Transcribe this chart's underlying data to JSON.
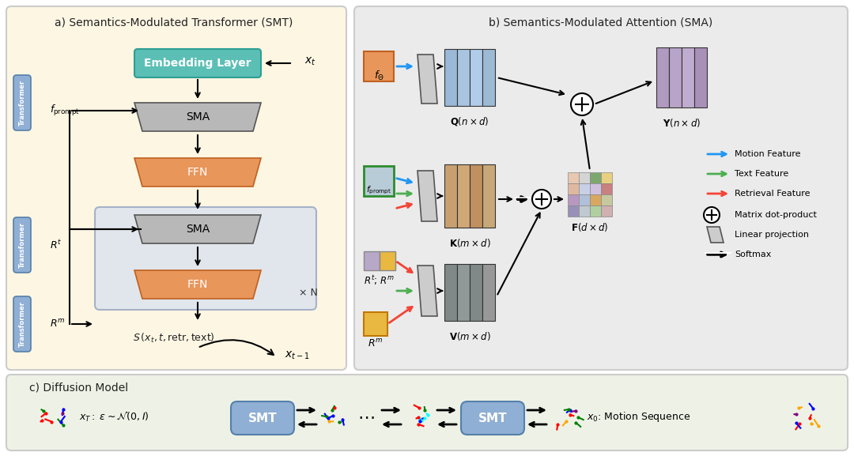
{
  "title": "",
  "bg_outer": "#ffffff",
  "bg_panel_a": "#fdf6e3",
  "bg_panel_b": "#ebebeb",
  "bg_panel_c": "#eef2e6",
  "bg_repeat_block": "#d6e0f0",
  "color_teal": "#5bbfb5",
  "color_orange": "#e8965a",
  "color_gray_box": "#a0a0a0",
  "color_sma": "#b0b0b0",
  "color_transformer": "#8fafd4",
  "color_ffn": "#e8965a",
  "color_embed": "#5bbfb5",
  "color_purple_box": "#b09ac0",
  "color_blue_line": "#2196F3",
  "color_green_line": "#4CAF50",
  "color_red_line": "#f44336",
  "color_black": "#1a1a1a",
  "color_smtbox": "#8fafd4",
  "panel_a_title": "a) Semantics-Modulated Transformer (SMT)",
  "panel_b_title": "b) Semantics-Modulated Attention (SMA)",
  "panel_c_title": "c) Diffusion Model"
}
